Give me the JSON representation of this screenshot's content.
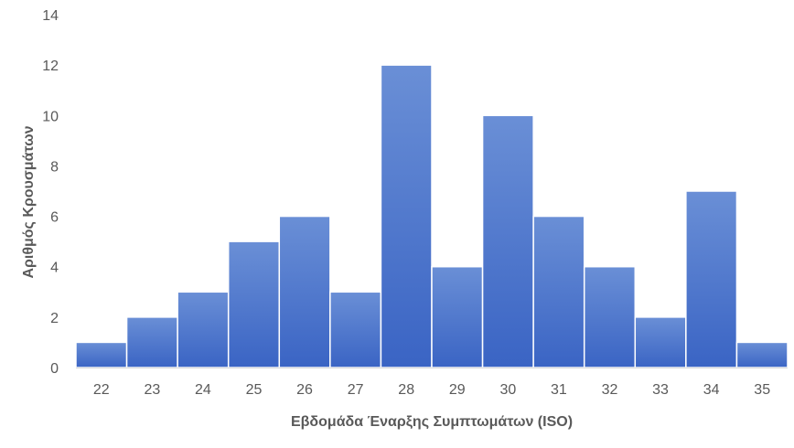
{
  "chart_data": {
    "type": "bar",
    "title": "",
    "xlabel": "Εβδομάδα Έναρξης Συμπτωμάτων (ISO)",
    "ylabel": "Αριθμός Κρουσμάτων",
    "categories": [
      "22",
      "23",
      "24",
      "25",
      "26",
      "27",
      "28",
      "29",
      "30",
      "31",
      "32",
      "33",
      "34",
      "35"
    ],
    "values": [
      1,
      2,
      3,
      5,
      6,
      3,
      12,
      4,
      10,
      6,
      4,
      2,
      7,
      1
    ],
    "ylim": [
      0,
      14
    ],
    "yticks": [
      0,
      2,
      4,
      6,
      8,
      10,
      12,
      14
    ],
    "grid": false,
    "legend": "none",
    "bar_gap": "none (histogram style)",
    "colors": {
      "bar_top": "#6a8fd6",
      "bar_bottom": "#3a64c4",
      "bar_outline": "#ffffff",
      "axis_line": "#d9d9d9",
      "text": "#595959"
    }
  }
}
